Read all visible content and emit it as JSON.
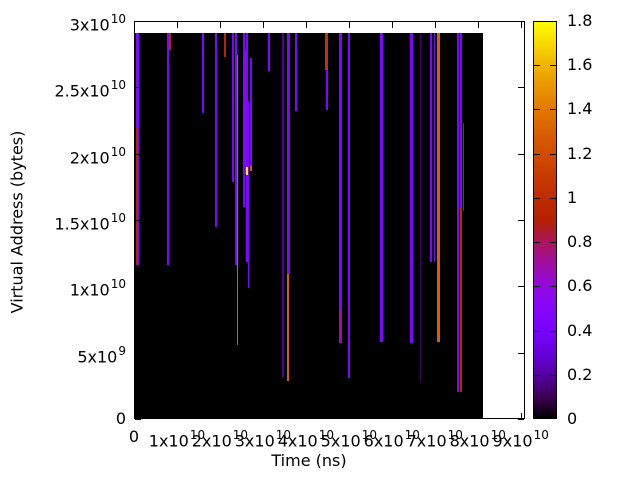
{
  "chart_data": {
    "type": "heatmap",
    "title": "",
    "xlabel": "Time (ns)",
    "ylabel": "Virtual Address (bytes)",
    "x_max": 91000000000.0,
    "y_max": 30000000000.0,
    "x_tick_values": [
      0,
      10000000000.0,
      20000000000.0,
      30000000000.0,
      40000000000.0,
      50000000000.0,
      60000000000.0,
      70000000000.0,
      80000000000.0,
      90000000000.0
    ],
    "x_tick_labels": [
      "0",
      "1x10^10",
      "2x10^10",
      "3x10^10",
      "4x10^10",
      "5x10^10",
      "6x10^10",
      "7x10^10",
      "8x10^10",
      "9x10^10"
    ],
    "y_tick_values": [
      0,
      5000000000.0,
      10000000000.0,
      15000000000.0,
      20000000000.0,
      25000000000.0,
      30000000000.0
    ],
    "y_tick_labels": [
      "0",
      "5x10^9",
      "1x10^10",
      "1.5x10^10",
      "2x10^10",
      "2.5x10^10",
      "3x10^10"
    ],
    "grid": false,
    "background_value": 0,
    "data_extent": {
      "t_min": 0,
      "t_max": 81200000000.0,
      "addr_min": 0,
      "addr_max": 29100000000.0
    },
    "colorbar": {
      "min": 0,
      "max": 1.8,
      "tick_values": [
        0,
        0.2,
        0.4,
        0.6,
        0.8,
        1,
        1.2,
        1.4,
        1.6,
        1.8
      ],
      "tick_labels": [
        "0",
        "0.2",
        "0.4",
        "0.6",
        "0.8",
        "1",
        "1.2",
        "1.4",
        "1.6",
        "1.8"
      ],
      "palette": "gnuplot-default black-purple-violet-red-orange-yellow",
      "position": "right"
    },
    "lines": [
      {
        "t": 930000000.0,
        "segments": [
          {
            "a1": 29100000000.0,
            "a0": 11600000000.0,
            "v": 0.45,
            "w": 3
          }
        ]
      },
      {
        "t": 700000000.0,
        "segments": [
          {
            "a1": 22000000000.0,
            "a0": 11600000000.0,
            "v": 0.9,
            "w": 1.5
          }
        ]
      },
      {
        "t": 7900000000.0,
        "segments": [
          {
            "a1": 29100000000.0,
            "a0": 11600000000.0,
            "v": 0.45,
            "w": 2.5
          }
        ]
      },
      {
        "t": 8400000000.0,
        "segments": [
          {
            "a1": 29100000000.0,
            "a0": 27800000000.0,
            "v": 0.95,
            "w": 1.5
          }
        ]
      },
      {
        "t": 16000000000.0,
        "segments": [
          {
            "a1": 29100000000.0,
            "a0": 23100000000.0,
            "v": 0.45,
            "w": 2
          }
        ]
      },
      {
        "t": 19100000000.0,
        "segments": [
          {
            "a1": 29100000000.0,
            "a0": 14500000000.0,
            "v": 0.45,
            "w": 2.5
          }
        ]
      },
      {
        "t": 21200000000.0,
        "segments": [
          {
            "a1": 29100000000.0,
            "a0": 27300000000.0,
            "v": 0.95,
            "w": 1.5
          }
        ]
      },
      {
        "t": 23000000000.0,
        "segments": [
          {
            "a1": 29100000000.0,
            "a0": 17900000000.0,
            "v": 0.45,
            "w": 1.5
          }
        ]
      },
      {
        "t": 23700000000.0,
        "segments": [
          {
            "a1": 29100000000.0,
            "a0": 11600000000.0,
            "v": 0.45,
            "w": 2
          }
        ]
      },
      {
        "t": 24100000000.0,
        "segments": [
          {
            "a1": 27400000000.0,
            "a0": 5600000000.0,
            "v": 1.3,
            "w": 1.5
          }
        ]
      },
      {
        "t": 25700000000.0,
        "segments": [
          {
            "a1": 29100000000.0,
            "a0": 16000000000.0,
            "v": 0.45,
            "w": 2
          }
        ]
      },
      {
        "t": 26000000000.0,
        "segments": [
          {
            "a1": 27800000000.0,
            "a0": 18500000000.0,
            "v": 0.95,
            "w": 1.5
          }
        ]
      },
      {
        "t": 26400000000.0,
        "segments": [
          {
            "a1": 29100000000.0,
            "a0": 11800000000.0,
            "v": 0.45,
            "w": 2
          },
          {
            "a1": 19000000000.0,
            "a0": 18400000000.0,
            "v": 1.8,
            "w": 2.5
          }
        ]
      },
      {
        "t": 26700000000.0,
        "segments": [
          {
            "a1": 24000000000.0,
            "a0": 9900000000.0,
            "v": 0.45,
            "w": 1.5
          }
        ]
      },
      {
        "t": 27200000000.0,
        "segments": [
          {
            "a1": 27200000000.0,
            "a0": 19100000000.0,
            "v": 0.45,
            "w": 1.5
          },
          {
            "a1": 19100000000.0,
            "a0": 18700000000.0,
            "v": 1.3,
            "w": 1.5
          }
        ]
      },
      {
        "t": 31400000000.0,
        "segments": [
          {
            "a1": 29100000000.0,
            "a0": 26200000000.0,
            "v": 0.45,
            "w": 2
          }
        ]
      },
      {
        "t": 34700000000.0,
        "segments": [
          {
            "a1": 29100000000.0,
            "a0": 3200000000.0,
            "v": 0.18,
            "w": 2
          }
        ]
      },
      {
        "t": 35900000000.0,
        "segments": [
          {
            "a1": 29100000000.0,
            "a0": 10900000000.0,
            "v": 0.45,
            "w": 2.5
          },
          {
            "a1": 10900000000.0,
            "a0": 2900000000.0,
            "v": 1.3,
            "w": 2
          }
        ]
      },
      {
        "t": 37600000000.0,
        "segments": [
          {
            "a1": 29100000000.0,
            "a0": 23200000000.0,
            "v": 0.45,
            "w": 2
          }
        ]
      },
      {
        "t": 44900000000.0,
        "segments": [
          {
            "a1": 29100000000.0,
            "a0": 26300000000.0,
            "v": 1.05,
            "w": 3
          },
          {
            "a1": 26300000000.0,
            "a0": 23300000000.0,
            "v": 0.45,
            "w": 1.5
          }
        ]
      },
      {
        "t": 48100000000.0,
        "segments": [
          {
            "a1": 29100000000.0,
            "a0": 8200000000.0,
            "v": 0.45,
            "w": 2.5
          },
          {
            "a1": 8200000000.0,
            "a0": 5700000000.0,
            "v": 0.7,
            "w": 3
          }
        ]
      },
      {
        "t": 50100000000.0,
        "segments": [
          {
            "a1": 29100000000.0,
            "a0": 3100000000.0,
            "v": 0.45,
            "w": 2
          }
        ]
      },
      {
        "t": 57600000000.0,
        "segments": [
          {
            "a1": 29100000000.0,
            "a0": 5800000000.0,
            "v": 0.45,
            "w": 3
          }
        ]
      },
      {
        "t": 64500000000.0,
        "segments": [
          {
            "a1": 29100000000.0,
            "a0": 5700000000.0,
            "v": 0.45,
            "w": 3
          }
        ]
      },
      {
        "t": 66700000000.0,
        "segments": [
          {
            "a1": 29100000000.0,
            "a0": 2900000000.0,
            "v": 0.12,
            "w": 1.5
          }
        ]
      },
      {
        "t": 69200000000.0,
        "segments": [
          {
            "a1": 29100000000.0,
            "a0": 11800000000.0,
            "v": 0.45,
            "w": 2
          }
        ]
      },
      {
        "t": 69900000000.0,
        "segments": [
          {
            "a1": 29100000000.0,
            "a0": 11800000000.0,
            "v": 0.45,
            "w": 1.5
          }
        ]
      },
      {
        "t": 70900000000.0,
        "segments": [
          {
            "a1": 29100000000.0,
            "a0": 5800000000.0,
            "v": 1.3,
            "w": 2.5
          }
        ]
      },
      {
        "t": 75300000000.0,
        "segments": [
          {
            "a1": 29100000000.0,
            "a0": 2000000000.0,
            "v": 0.45,
            "w": 2
          }
        ]
      },
      {
        "t": 76200000000.0,
        "segments": [
          {
            "a1": 29100000000.0,
            "a0": 16000000000.0,
            "v": 0.45,
            "w": 2
          },
          {
            "a1": 16000000000.0,
            "a0": 2000000000.0,
            "v": 0.95,
            "w": 2
          }
        ]
      },
      {
        "t": 76700000000.0,
        "segments": [
          {
            "a1": 22300000000.0,
            "a0": 15700000000.0,
            "v": 0.45,
            "w": 1.5
          }
        ]
      }
    ]
  }
}
